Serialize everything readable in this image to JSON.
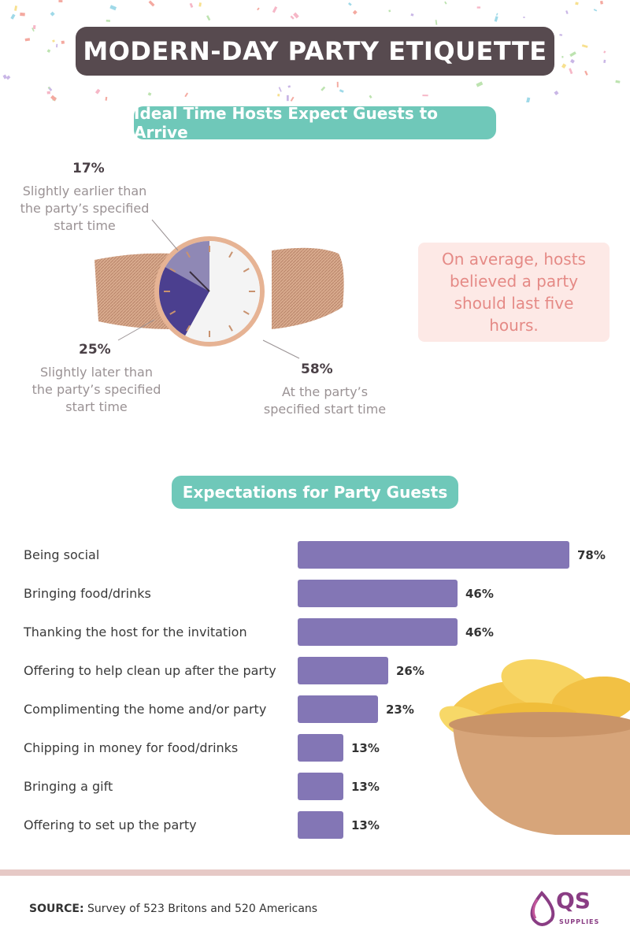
{
  "title": "MODERN-DAY PARTY ETIQUETTE",
  "section1_title": "Ideal Time Hosts Expect Guests to Arrive",
  "section2_title": "Expectations for Party Guests",
  "info_box": "On average, hosts believed a party should last five hours.",
  "source_label": "SOURCE:",
  "source_text": "Survey of 523 Britons and 520 Americans",
  "logo": {
    "text": "QS",
    "sub": "SUPPLIES"
  },
  "colors": {
    "accent_teal": "#6fc8b9",
    "bar_purple": "#8376b5",
    "pie_dark": "#4b3f8f",
    "pie_light": "#8f88b5",
    "title_bg": "#574a4f",
    "info_text": "#e58a86"
  },
  "chart_data": [
    {
      "type": "pie",
      "categories": [
        "Slightly earlier than the party’s specified start time",
        "Slightly later than the party’s specified start time",
        "At the party’s specified start time"
      ],
      "values": [
        17,
        25,
        58
      ],
      "labels": [
        "17%",
        "25%",
        "58%"
      ]
    },
    {
      "type": "bar",
      "orientation": "horizontal",
      "categories": [
        "Being social",
        "Bringing food/drinks",
        "Thanking the host for the invitation",
        "Offering to help clean up after the party",
        "Complimenting the home and/or party",
        "Chipping in money for food/drinks",
        "Bringing a gift",
        "Offering to set up the party"
      ],
      "values": [
        78,
        46,
        46,
        26,
        23,
        13,
        13,
        13
      ],
      "labels": [
        "78%",
        "46%",
        "46%",
        "26%",
        "23%",
        "13%",
        "13%",
        "13%"
      ]
    }
  ]
}
